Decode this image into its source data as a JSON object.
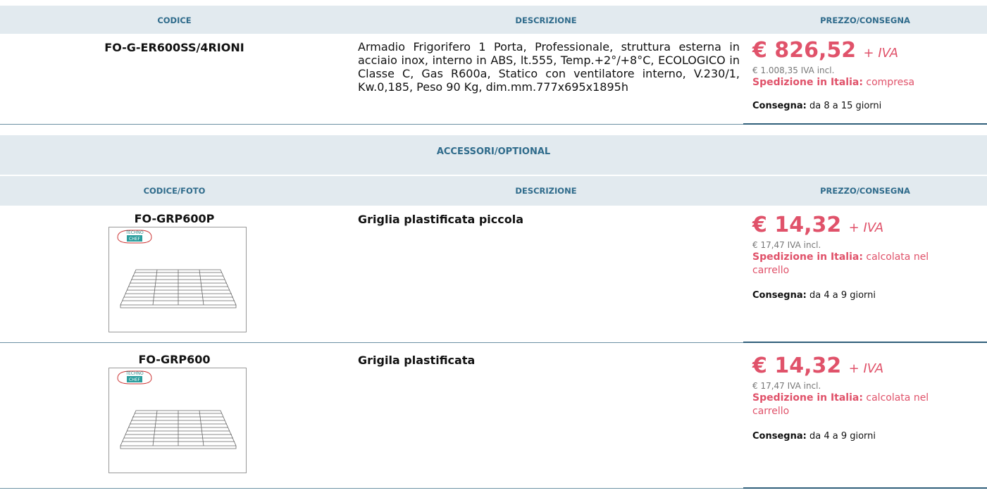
{
  "main_table": {
    "headers": [
      "CODICE",
      "DESCRIZIONE",
      "PREZZO/CONSEGNA"
    ],
    "row": {
      "code": "FO-G-ER600SS/4RIONI",
      "description": "Armadio Frigorifero 1 Porta, Professionale, struttura esterna in acciaio inox, interno in ABS, lt.555, Temp.+2°/+8°C, ECOLOGICO in Classe C, Gas R600a, Statico con ventilatore interno, V.230/1, Kw.0,185, Peso 90 Kg, dim.mm.777x695x1895h",
      "price": "€ 826,52",
      "vat": "+ IVA",
      "price_incl": "€ 1.008,35 IVA incl.",
      "shipping_label": "Spedizione in Italia:",
      "shipping": "compresa",
      "delivery_label": "Consegna:",
      "delivery": "da 8 a 15 giorni"
    }
  },
  "accessories": {
    "title": "ACCESSORI/OPTIONAL",
    "headers": [
      "CODICE/FOTO",
      "DESCRIZIONE",
      "PREZZO/CONSEGNA"
    ],
    "items": [
      {
        "code": "FO-GRP600P",
        "logo_top": "TECHNO",
        "logo_bottom": "CHEF",
        "description": "Griglia plastificata piccola",
        "price": "€ 14,32",
        "vat": "+ IVA",
        "price_incl": "€ 17,47 IVA incl.",
        "shipping_label": "Spedizione in Italia:",
        "shipping": "calcolata nel carrello",
        "delivery_label": "Consegna:",
        "delivery": "da 4 a 9 giorni"
      },
      {
        "code": "FO-GRP600",
        "logo_top": "TECHNO",
        "logo_bottom": "CHEF",
        "description": "Grigila plastificata",
        "price": "€ 14,32",
        "vat": "+ IVA",
        "price_incl": "€ 17,47 IVA incl.",
        "shipping_label": "Spedizione in Italia:",
        "shipping": "calcolata nel carrello",
        "delivery_label": "Consegna:",
        "delivery": "da 4 a 9 giorni"
      }
    ]
  }
}
